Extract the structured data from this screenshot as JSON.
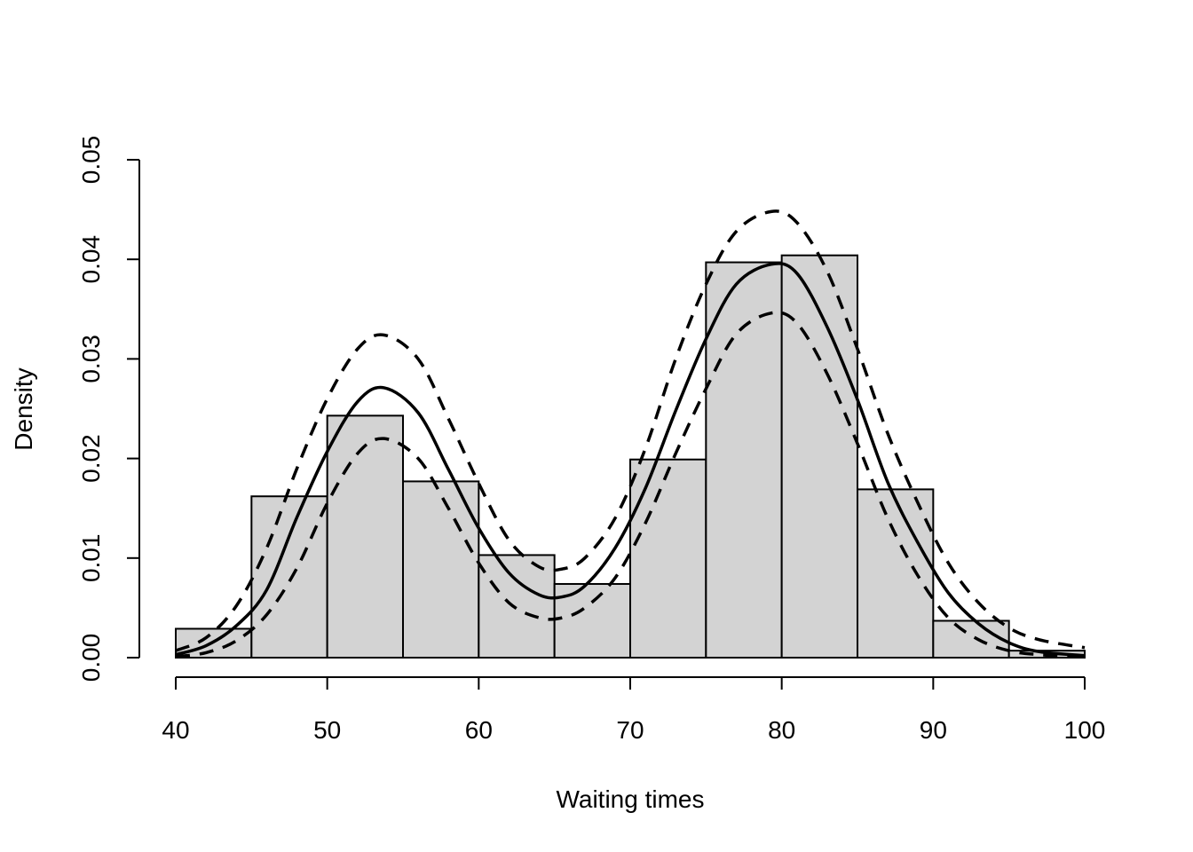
{
  "chart_data": {
    "type": "bar",
    "title": "",
    "xlabel": "Waiting times",
    "ylabel": "Density",
    "xlim": [
      40,
      100
    ],
    "ylim": [
      0,
      0.05
    ],
    "x_ticks": [
      "40",
      "50",
      "60",
      "70",
      "80",
      "90",
      "100"
    ],
    "y_ticks": [
      "0.00",
      "0.01",
      "0.02",
      "0.03",
      "0.04",
      "0.05"
    ],
    "grid": false,
    "bar_fill": "#d3d3d3",
    "bar_stroke": "#000000",
    "histogram": {
      "bin_edges": [
        40,
        45,
        50,
        55,
        60,
        65,
        70,
        75,
        80,
        85,
        90,
        95,
        100
      ],
      "values": [
        0.0029,
        0.0162,
        0.0243,
        0.0177,
        0.0103,
        0.0074,
        0.0199,
        0.0397,
        0.0404,
        0.0169,
        0.0037,
        0.0007
      ]
    },
    "curves": [
      {
        "style": "solid",
        "x": [
          40,
          42,
          44,
          46,
          48,
          50,
          52,
          53.75,
          56,
          58,
          60,
          62,
          64,
          65.5,
          67,
          69,
          71,
          73,
          75,
          77,
          79.3,
          81,
          83,
          85,
          87,
          89,
          91,
          93,
          95,
          97,
          100
        ],
        "y": [
          0.0003,
          0.0012,
          0.0032,
          0.0068,
          0.0141,
          0.0207,
          0.0257,
          0.0271,
          0.0246,
          0.0189,
          0.013,
          0.0085,
          0.0063,
          0.0061,
          0.0072,
          0.011,
          0.017,
          0.0248,
          0.032,
          0.0375,
          0.0395,
          0.0386,
          0.0332,
          0.0259,
          0.0176,
          0.0115,
          0.0065,
          0.0034,
          0.0015,
          0.0006,
          0.0002
        ]
      },
      {
        "style": "dashed",
        "x": [
          40,
          42,
          44,
          46,
          48,
          50,
          52,
          53.75,
          56,
          58,
          60,
          62,
          64,
          65.5,
          67,
          69,
          71,
          73,
          75,
          77,
          79.3,
          81,
          83,
          85,
          87,
          89,
          91,
          93,
          95,
          97,
          100
        ],
        "y": [
          0.0007,
          0.002,
          0.0052,
          0.011,
          0.019,
          0.026,
          0.031,
          0.0324,
          0.03,
          0.024,
          0.0175,
          0.0118,
          0.0091,
          0.0089,
          0.01,
          0.014,
          0.021,
          0.03,
          0.0375,
          0.0428,
          0.0448,
          0.0437,
          0.0388,
          0.031,
          0.0225,
          0.0155,
          0.0095,
          0.0055,
          0.003,
          0.0018,
          0.001
        ]
      },
      {
        "style": "dashed",
        "x": [
          40,
          42,
          44,
          46,
          48,
          50,
          52,
          53.75,
          56,
          58,
          60,
          62,
          64,
          65.5,
          67,
          69,
          71,
          73,
          75,
          77,
          79.3,
          81,
          83,
          85,
          87,
          89,
          91,
          93,
          95,
          97,
          100
        ],
        "y": [
          0.0001,
          0.0005,
          0.0017,
          0.0043,
          0.009,
          0.0155,
          0.0205,
          0.022,
          0.02,
          0.015,
          0.0095,
          0.0055,
          0.004,
          0.004,
          0.005,
          0.008,
          0.0135,
          0.0205,
          0.027,
          0.0325,
          0.0346,
          0.0336,
          0.0285,
          0.0215,
          0.014,
          0.0082,
          0.004,
          0.0018,
          0.0007,
          0.0003,
          0.0001
        ]
      }
    ]
  }
}
